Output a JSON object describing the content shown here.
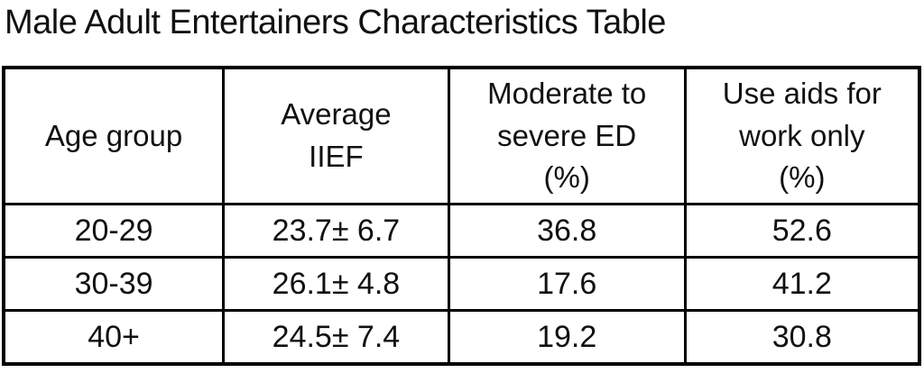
{
  "title": "Male Adult Entertainers Characteristics Table",
  "table": {
    "headers": [
      "Age group",
      "Average\nIIEF",
      "Moderate to\nsevere ED\n(%)",
      "Use aids for\nwork only\n(%)"
    ],
    "rows": [
      [
        "20-29",
        "23.7± 6.7",
        "36.8",
        "52.6"
      ],
      [
        "30-39",
        "26.1± 4.8",
        "17.6",
        "41.2"
      ],
      [
        "40+",
        "24.5± 7.4",
        "19.2",
        "30.8"
      ]
    ]
  },
  "colors": {
    "text": "#111111",
    "border": "#000000",
    "background": "#ffffff"
  },
  "chart_data": {
    "type": "table",
    "title": "Male Adult Entertainers Characteristics Table",
    "columns": [
      "Age group",
      "Average IIEF",
      "Moderate to severe ED (%)",
      "Use aids for work only (%)"
    ],
    "rows": [
      {
        "age_group": "20-29",
        "average_iief": "23.7± 6.7",
        "average_iief_mean": 23.7,
        "average_iief_sd": 6.7,
        "moderate_to_severe_ed_pct": 36.8,
        "use_aids_for_work_only_pct": 52.6
      },
      {
        "age_group": "30-39",
        "average_iief": "26.1± 4.8",
        "average_iief_mean": 26.1,
        "average_iief_sd": 4.8,
        "moderate_to_severe_ed_pct": 17.6,
        "use_aids_for_work_only_pct": 41.2
      },
      {
        "age_group": "40+",
        "average_iief": "24.5± 7.4",
        "average_iief_mean": 24.5,
        "average_iief_sd": 7.4,
        "moderate_to_severe_ed_pct": 19.2,
        "use_aids_for_work_only_pct": 30.8
      }
    ]
  }
}
